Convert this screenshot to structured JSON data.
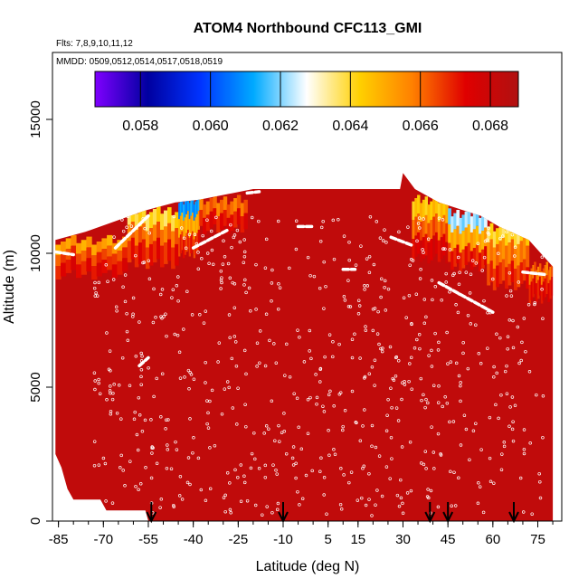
{
  "chart_data": {
    "type": "heatmap",
    "title": "ATOM4 Northbound CFC113_GMI",
    "flights_note": "Flts: 7,8,9,10,11,12",
    "dates_note": "MMDD: 0509,0512,0514,0517,0518,0519",
    "xlabel": "Latitude (deg N)",
    "ylabel": "Altitude (m)",
    "xlim": [
      -87,
      83
    ],
    "ylim": [
      0,
      17500
    ],
    "x_ticks": [
      -85,
      -70,
      -55,
      -40,
      -25,
      -10,
      5,
      15,
      30,
      45,
      60,
      75
    ],
    "y_ticks": [
      0,
      5000,
      10000,
      15000
    ],
    "colorbar": {
      "range": [
        0.0567,
        0.0688
      ],
      "ticks": [
        0.058,
        0.06,
        0.062,
        0.064,
        0.066,
        0.068
      ],
      "colors": [
        "#7f00ff",
        "#0000a0",
        "#0033ff",
        "#00aaff",
        "#ffffff",
        "#ffd000",
        "#ff8000",
        "#e00000",
        "#b01010"
      ]
    },
    "curtain": {
      "background_value": 0.0683,
      "top_profile": [
        {
          "lat": -86,
          "alt": 10500
        },
        {
          "lat": -76,
          "alt": 10800
        },
        {
          "lat": -66,
          "alt": 11200
        },
        {
          "lat": -56,
          "alt": 11600
        },
        {
          "lat": -46,
          "alt": 11900
        },
        {
          "lat": -38,
          "alt": 12000
        },
        {
          "lat": -20,
          "alt": 12400
        },
        {
          "lat": 0,
          "alt": 12400
        },
        {
          "lat": 20,
          "alt": 12400
        },
        {
          "lat": 29,
          "alt": 12400
        },
        {
          "lat": 30,
          "alt": 13000
        },
        {
          "lat": 34,
          "alt": 12400
        },
        {
          "lat": 42,
          "alt": 11900
        },
        {
          "lat": 56,
          "alt": 11400
        },
        {
          "lat": 62,
          "alt": 11000
        },
        {
          "lat": 72,
          "alt": 10500
        },
        {
          "lat": 80,
          "alt": 9500
        }
      ],
      "bottom_profile": [
        {
          "lat": -86,
          "alt": 2500
        },
        {
          "lat": -84,
          "alt": 2000
        },
        {
          "lat": -82,
          "alt": 1200
        },
        {
          "lat": -80,
          "alt": 800
        },
        {
          "lat": -71,
          "alt": 800
        },
        {
          "lat": -69,
          "alt": 400
        },
        {
          "lat": -56,
          "alt": 400
        },
        {
          "lat": -55,
          "alt": 0
        },
        {
          "lat": 80,
          "alt": 0
        }
      ],
      "upper_gradient_bands": [
        {
          "lat_from": -86,
          "lat_to": -62,
          "layers": [
            {
              "alt_from": 10100,
              "alt_to": 10500,
              "value": 0.0652
            },
            {
              "alt_from": 9700,
              "alt_to": 10100,
              "value": 0.0665
            },
            {
              "alt_from": 9200,
              "alt_to": 9700,
              "value": 0.0672
            }
          ]
        },
        {
          "lat_from": -62,
          "lat_to": -45,
          "layers": [
            {
              "alt_from": 11000,
              "alt_to": 11600,
              "value": 0.064
            },
            {
              "alt_from": 10400,
              "alt_to": 11000,
              "value": 0.066
            },
            {
              "alt_from": 9600,
              "alt_to": 10400,
              "value": 0.067
            }
          ]
        },
        {
          "lat_from": -45,
          "lat_to": -38,
          "layers": [
            {
              "alt_from": 11400,
              "alt_to": 12000,
              "value": 0.061
            },
            {
              "alt_from": 10700,
              "alt_to": 11400,
              "value": 0.065
            },
            {
              "alt_from": 10000,
              "alt_to": 10700,
              "value": 0.0668
            }
          ]
        },
        {
          "lat_from": -38,
          "lat_to": -22,
          "layers": [
            {
              "alt_from": 11500,
              "alt_to": 12000,
              "value": 0.066
            },
            {
              "alt_from": 10900,
              "alt_to": 11500,
              "value": 0.0672
            }
          ]
        },
        {
          "lat_from": 33,
          "lat_to": 45,
          "layers": [
            {
              "alt_from": 11300,
              "alt_to": 12000,
              "value": 0.0645
            },
            {
              "alt_from": 10600,
              "alt_to": 11300,
              "value": 0.0662
            },
            {
              "alt_from": 9800,
              "alt_to": 10600,
              "value": 0.0675
            }
          ]
        },
        {
          "lat_from": 45,
          "lat_to": 58,
          "layers": [
            {
              "alt_from": 10900,
              "alt_to": 11500,
              "value": 0.0622
            },
            {
              "alt_from": 10200,
              "alt_to": 10900,
              "value": 0.065
            },
            {
              "alt_from": 9500,
              "alt_to": 10200,
              "value": 0.067
            }
          ]
        },
        {
          "lat_from": 58,
          "lat_to": 72,
          "layers": [
            {
              "alt_from": 10400,
              "alt_to": 11000,
              "value": 0.064
            },
            {
              "alt_from": 9600,
              "alt_to": 10400,
              "value": 0.0658
            },
            {
              "alt_from": 8800,
              "alt_to": 9600,
              "value": 0.0668
            }
          ]
        },
        {
          "lat_from": 72,
          "lat_to": 80,
          "layers": [
            {
              "alt_from": 9000,
              "alt_to": 9500,
              "value": 0.066
            },
            {
              "alt_from": 8300,
              "alt_to": 9000,
              "value": 0.0672
            }
          ]
        }
      ]
    },
    "flight_tracks": [
      {
        "from": [
          -86,
          10050
        ],
        "to": [
          -80,
          9950
        ]
      },
      {
        "from": [
          -66,
          10200
        ],
        "to": [
          -55,
          11400
        ]
      },
      {
        "from": [
          -40,
          10200
        ],
        "to": [
          -28,
          10900
        ]
      },
      {
        "from": [
          -22,
          12250
        ],
        "to": [
          -18,
          12300
        ]
      },
      {
        "from": [
          -5,
          11000
        ],
        "to": [
          0,
          11000
        ]
      },
      {
        "from": [
          10,
          9400
        ],
        "to": [
          14,
          9400
        ]
      },
      {
        "from": [
          26,
          10600
        ],
        "to": [
          33,
          10300
        ]
      },
      {
        "from": [
          42,
          8900
        ],
        "to": [
          60,
          7800
        ]
      },
      {
        "from": [
          70,
          9300
        ],
        "to": [
          78,
          9200
        ]
      },
      {
        "from": [
          -58,
          5800
        ],
        "to": [
          -55,
          6100
        ]
      }
    ],
    "profile_latitudes": [
      -54,
      -10,
      39,
      45,
      67
    ]
  }
}
